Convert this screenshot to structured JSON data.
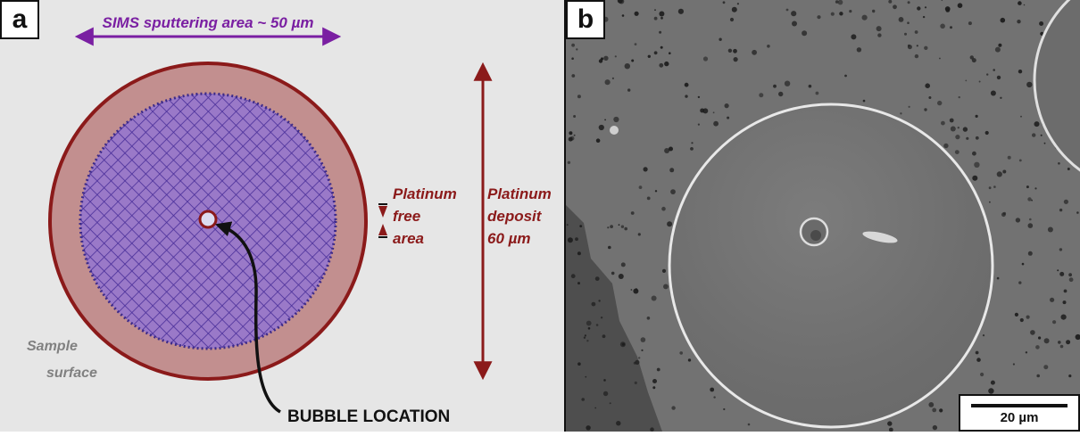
{
  "panel_a": {
    "label": "a",
    "sputter_label": "SIMS sputtering area ~ 50 µm",
    "pt_free_lines": [
      "Platinum",
      "free",
      "area"
    ],
    "pt_deposit_lines": [
      "Platinum",
      "deposit",
      "60 µm"
    ],
    "sample_surface_lines": [
      "Sample",
      "surface"
    ],
    "bubble_label": "BUBBLE LOCATION"
  },
  "panel_b": {
    "label": "b",
    "scale_label": "20 µm"
  },
  "colors": {
    "background": "#e6e6e6",
    "deposit_fill": "#c28f8f",
    "deposit_edge": "#8b1a1a",
    "sputter_grid": "#6a4bb0",
    "annotation_red": "#8b1a1a",
    "annotation_purple": "#7a1fa2",
    "annotation_gray": "#808080",
    "sem_gray": "#707070"
  }
}
